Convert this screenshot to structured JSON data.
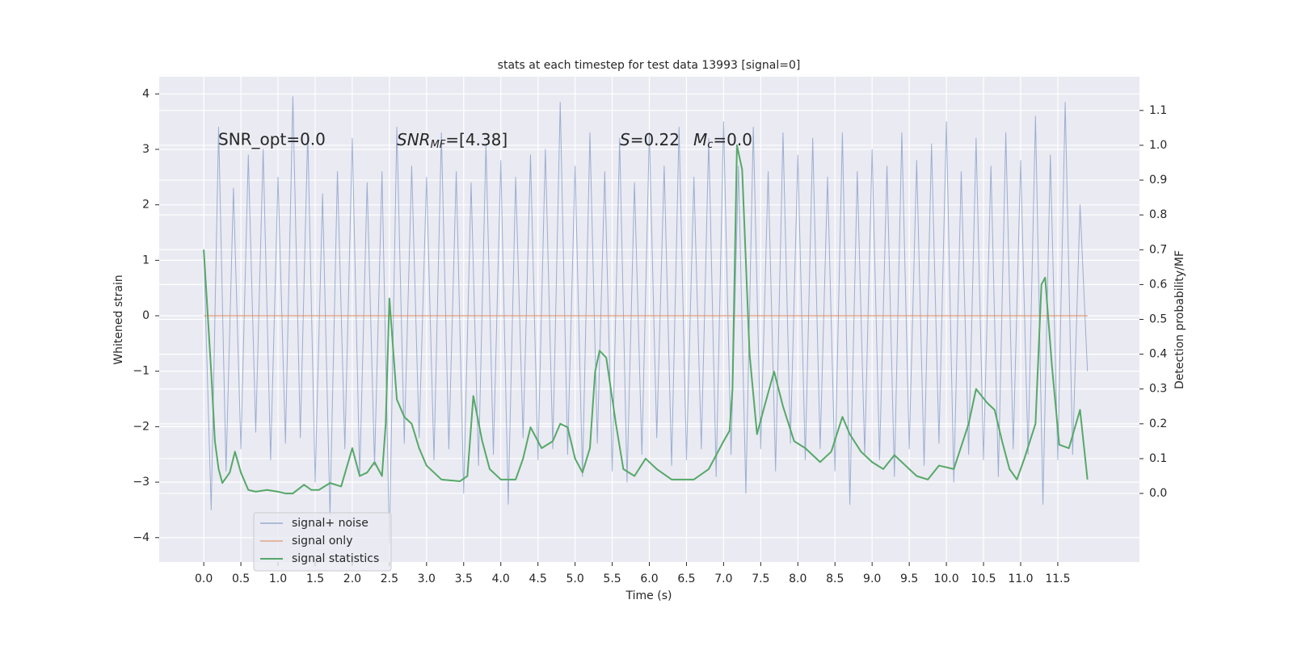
{
  "chart_data": {
    "type": "line",
    "title": "stats at each timestep for test data 13993 [signal=0]",
    "xlabel": "Time (s)",
    "ylabel": "Whitened strain",
    "y2label": "Detection probability/MF",
    "annotations": [
      {
        "text": "SNR_opt=0.0"
      },
      {
        "text": "SNR",
        "sub": "MF",
        "rest": "=[4.38]"
      },
      {
        "text": "S",
        "rest": "=0.22"
      },
      {
        "text": "M",
        "sub": "c",
        "rest": "=0.0"
      }
    ],
    "xlim": [
      -0.6,
      12.6
    ],
    "ylim": [
      -4.44,
      4.31
    ],
    "y2lim": [
      -0.197,
      1.197
    ],
    "xticks": [
      {
        "value": 0,
        "label": "0.0"
      },
      0.5,
      {
        "value": 1,
        "label": "1.0"
      },
      1.5,
      {
        "value": 2,
        "label": "2.0"
      },
      2.5,
      {
        "value": 3,
        "label": "3.0"
      },
      3.5,
      {
        "value": 4,
        "label": "4.0"
      },
      4.5,
      {
        "value": 5,
        "label": "5.0"
      },
      5.5,
      {
        "value": 6,
        "label": "6.0"
      },
      6.5,
      {
        "value": 7,
        "label": "7.0"
      },
      7.5,
      {
        "value": 8,
        "label": "8.0"
      },
      8.5,
      {
        "value": 9,
        "label": "9.0"
      },
      9.5,
      {
        "value": 10,
        "label": "10.0"
      },
      10.5,
      {
        "value": 11,
        "label": "11.0"
      },
      11.5
    ],
    "yticks": [
      {
        "value": -4,
        "label": "−4"
      },
      {
        "value": -3,
        "label": "−3"
      },
      {
        "value": -2,
        "label": "−2"
      },
      {
        "value": -1,
        "label": "−1"
      },
      0,
      1,
      2,
      3,
      4
    ],
    "y2ticks": [
      {
        "value": 0,
        "label": "0.0"
      },
      0.1,
      0.2,
      0.3,
      0.4,
      0.5,
      0.6,
      0.7,
      0.8,
      0.9,
      {
        "value": 1,
        "label": "1.0"
      },
      1.1
    ],
    "grid": true,
    "legend": "lower left",
    "series": [
      {
        "name": "signal+ noise",
        "color": "#4c72b0",
        "x": [
          0,
          0.1,
          0.2,
          0.3,
          0.4,
          0.5,
          0.6,
          0.7,
          0.8,
          0.9,
          1,
          1.1,
          1.2,
          1.3,
          1.4,
          1.5,
          1.6,
          1.7,
          1.8,
          1.9,
          2,
          2.1,
          2.2,
          2.3,
          2.4,
          2.5,
          2.6,
          2.7,
          2.8,
          2.9,
          3,
          3.1,
          3.2,
          3.3,
          3.4,
          3.5,
          3.6,
          3.7,
          3.8,
          3.9,
          4,
          4.1,
          4.2,
          4.3,
          4.4,
          4.5,
          4.6,
          4.7,
          4.8,
          4.9,
          5,
          5.1,
          5.2,
          5.3,
          5.4,
          5.5,
          5.6,
          5.7,
          5.8,
          5.9,
          6,
          6.1,
          6.2,
          6.3,
          6.4,
          6.5,
          6.6,
          6.7,
          6.8,
          6.9,
          7,
          7.1,
          7.2,
          7.3,
          7.4,
          7.5,
          7.6,
          7.7,
          7.8,
          7.9,
          8,
          8.1,
          8.2,
          8.3,
          8.4,
          8.5,
          8.6,
          8.7,
          8.8,
          8.9,
          9,
          9.1,
          9.2,
          9.3,
          9.4,
          9.5,
          9.6,
          9.7,
          9.8,
          9.9,
          10,
          10.1,
          10.2,
          10.3,
          10.4,
          10.5,
          10.6,
          10.7,
          10.8,
          10.9,
          11,
          11.1,
          11.2,
          11.3,
          11.4,
          11.5,
          11.6,
          11.7,
          11.8,
          11.9
        ],
        "values": [
          1.2,
          -3.5,
          3.4,
          -2.8,
          2.3,
          -2.4,
          2.9,
          -2.1,
          3.0,
          -2.6,
          2.5,
          -2.3,
          3.95,
          -2.2,
          3.3,
          -3.0,
          2.2,
          -3.6,
          2.6,
          -2.4,
          3.2,
          -2.9,
          2.4,
          -2.7,
          2.6,
          -4.1,
          3.4,
          -2.3,
          2.7,
          -2.2,
          2.5,
          -2.6,
          3.3,
          -2.4,
          2.6,
          -3.2,
          2.4,
          -2.7,
          3.1,
          -2.5,
          2.8,
          -3.4,
          2.5,
          -2.2,
          2.9,
          -2.6,
          3.0,
          -2.4,
          3.85,
          -2.5,
          2.7,
          -2.9,
          3.3,
          -2.3,
          2.6,
          -2.8,
          3.2,
          -3.0,
          2.4,
          -2.5,
          3.3,
          -2.2,
          2.7,
          -2.7,
          3.4,
          -2.6,
          2.5,
          -2.4,
          3.2,
          -2.9,
          3.5,
          -2.5,
          2.7,
          -3.2,
          3.4,
          -2.4,
          2.6,
          -2.8,
          3.3,
          -2.3,
          2.9,
          -2.6,
          3.2,
          -2.4,
          2.5,
          -2.8,
          3.3,
          -3.4,
          2.6,
          -2.5,
          3.0,
          -2.6,
          2.7,
          -2.9,
          3.3,
          -2.4,
          2.8,
          -2.7,
          3.1,
          -2.3,
          3.5,
          -3.0,
          2.6,
          -2.5,
          3.2,
          -2.6,
          2.7,
          -2.9,
          3.3,
          -2.4,
          2.8,
          -2.5,
          3.6,
          -3.4,
          2.9,
          -2.6,
          3.85,
          -2.5,
          2.0,
          -1.0
        ]
      },
      {
        "name": "signal only",
        "color": "#dd8452",
        "x": [
          0,
          11.9
        ],
        "values": [
          0,
          0
        ]
      },
      {
        "name": "signal statistics",
        "color": "#55a868",
        "axis": "y2",
        "x": [
          0,
          0.1,
          0.15,
          0.2,
          0.25,
          0.35,
          0.42,
          0.5,
          0.6,
          0.7,
          0.85,
          1.0,
          1.1,
          1.2,
          1.35,
          1.45,
          1.55,
          1.7,
          1.85,
          2.0,
          2.1,
          2.2,
          2.3,
          2.4,
          2.45,
          2.5,
          2.6,
          2.7,
          2.8,
          2.9,
          3.0,
          3.1,
          3.2,
          3.45,
          3.55,
          3.63,
          3.75,
          3.85,
          4.0,
          4.2,
          4.3,
          4.4,
          4.55,
          4.7,
          4.8,
          4.9,
          5.0,
          5.1,
          5.2,
          5.27,
          5.33,
          5.42,
          5.55,
          5.65,
          5.8,
          5.95,
          6.1,
          6.3,
          6.6,
          6.8,
          7.0,
          7.08,
          7.12,
          7.18,
          7.25,
          7.35,
          7.45,
          7.55,
          7.68,
          7.8,
          7.95,
          8.1,
          8.3,
          8.45,
          8.6,
          8.7,
          8.85,
          9.0,
          9.15,
          9.3,
          9.45,
          9.6,
          9.75,
          9.9,
          10.1,
          10.3,
          10.4,
          10.55,
          10.65,
          10.75,
          10.85,
          10.95,
          11.05,
          11.2,
          11.28,
          11.33,
          11.42,
          11.52,
          11.65,
          11.8,
          11.9
        ],
        "values": [
          0.7,
          0.35,
          0.15,
          0.07,
          0.03,
          0.06,
          0.12,
          0.06,
          0.01,
          0.005,
          0.01,
          0.005,
          0.0,
          0.0,
          0.025,
          0.01,
          0.01,
          0.03,
          0.02,
          0.13,
          0.05,
          0.06,
          0.09,
          0.05,
          0.2,
          0.56,
          0.27,
          0.22,
          0.2,
          0.13,
          0.08,
          0.06,
          0.04,
          0.035,
          0.05,
          0.28,
          0.15,
          0.07,
          0.04,
          0.04,
          0.1,
          0.19,
          0.13,
          0.15,
          0.2,
          0.19,
          0.1,
          0.06,
          0.13,
          0.35,
          0.41,
          0.39,
          0.2,
          0.07,
          0.05,
          0.1,
          0.07,
          0.04,
          0.04,
          0.07,
          0.15,
          0.18,
          0.3,
          1.0,
          0.93,
          0.4,
          0.17,
          0.25,
          0.35,
          0.25,
          0.15,
          0.13,
          0.09,
          0.12,
          0.22,
          0.17,
          0.12,
          0.09,
          0.07,
          0.11,
          0.08,
          0.05,
          0.04,
          0.08,
          0.07,
          0.2,
          0.3,
          0.26,
          0.24,
          0.15,
          0.07,
          0.04,
          0.1,
          0.2,
          0.6,
          0.62,
          0.37,
          0.14,
          0.13,
          0.24,
          0.04
        ]
      }
    ]
  }
}
